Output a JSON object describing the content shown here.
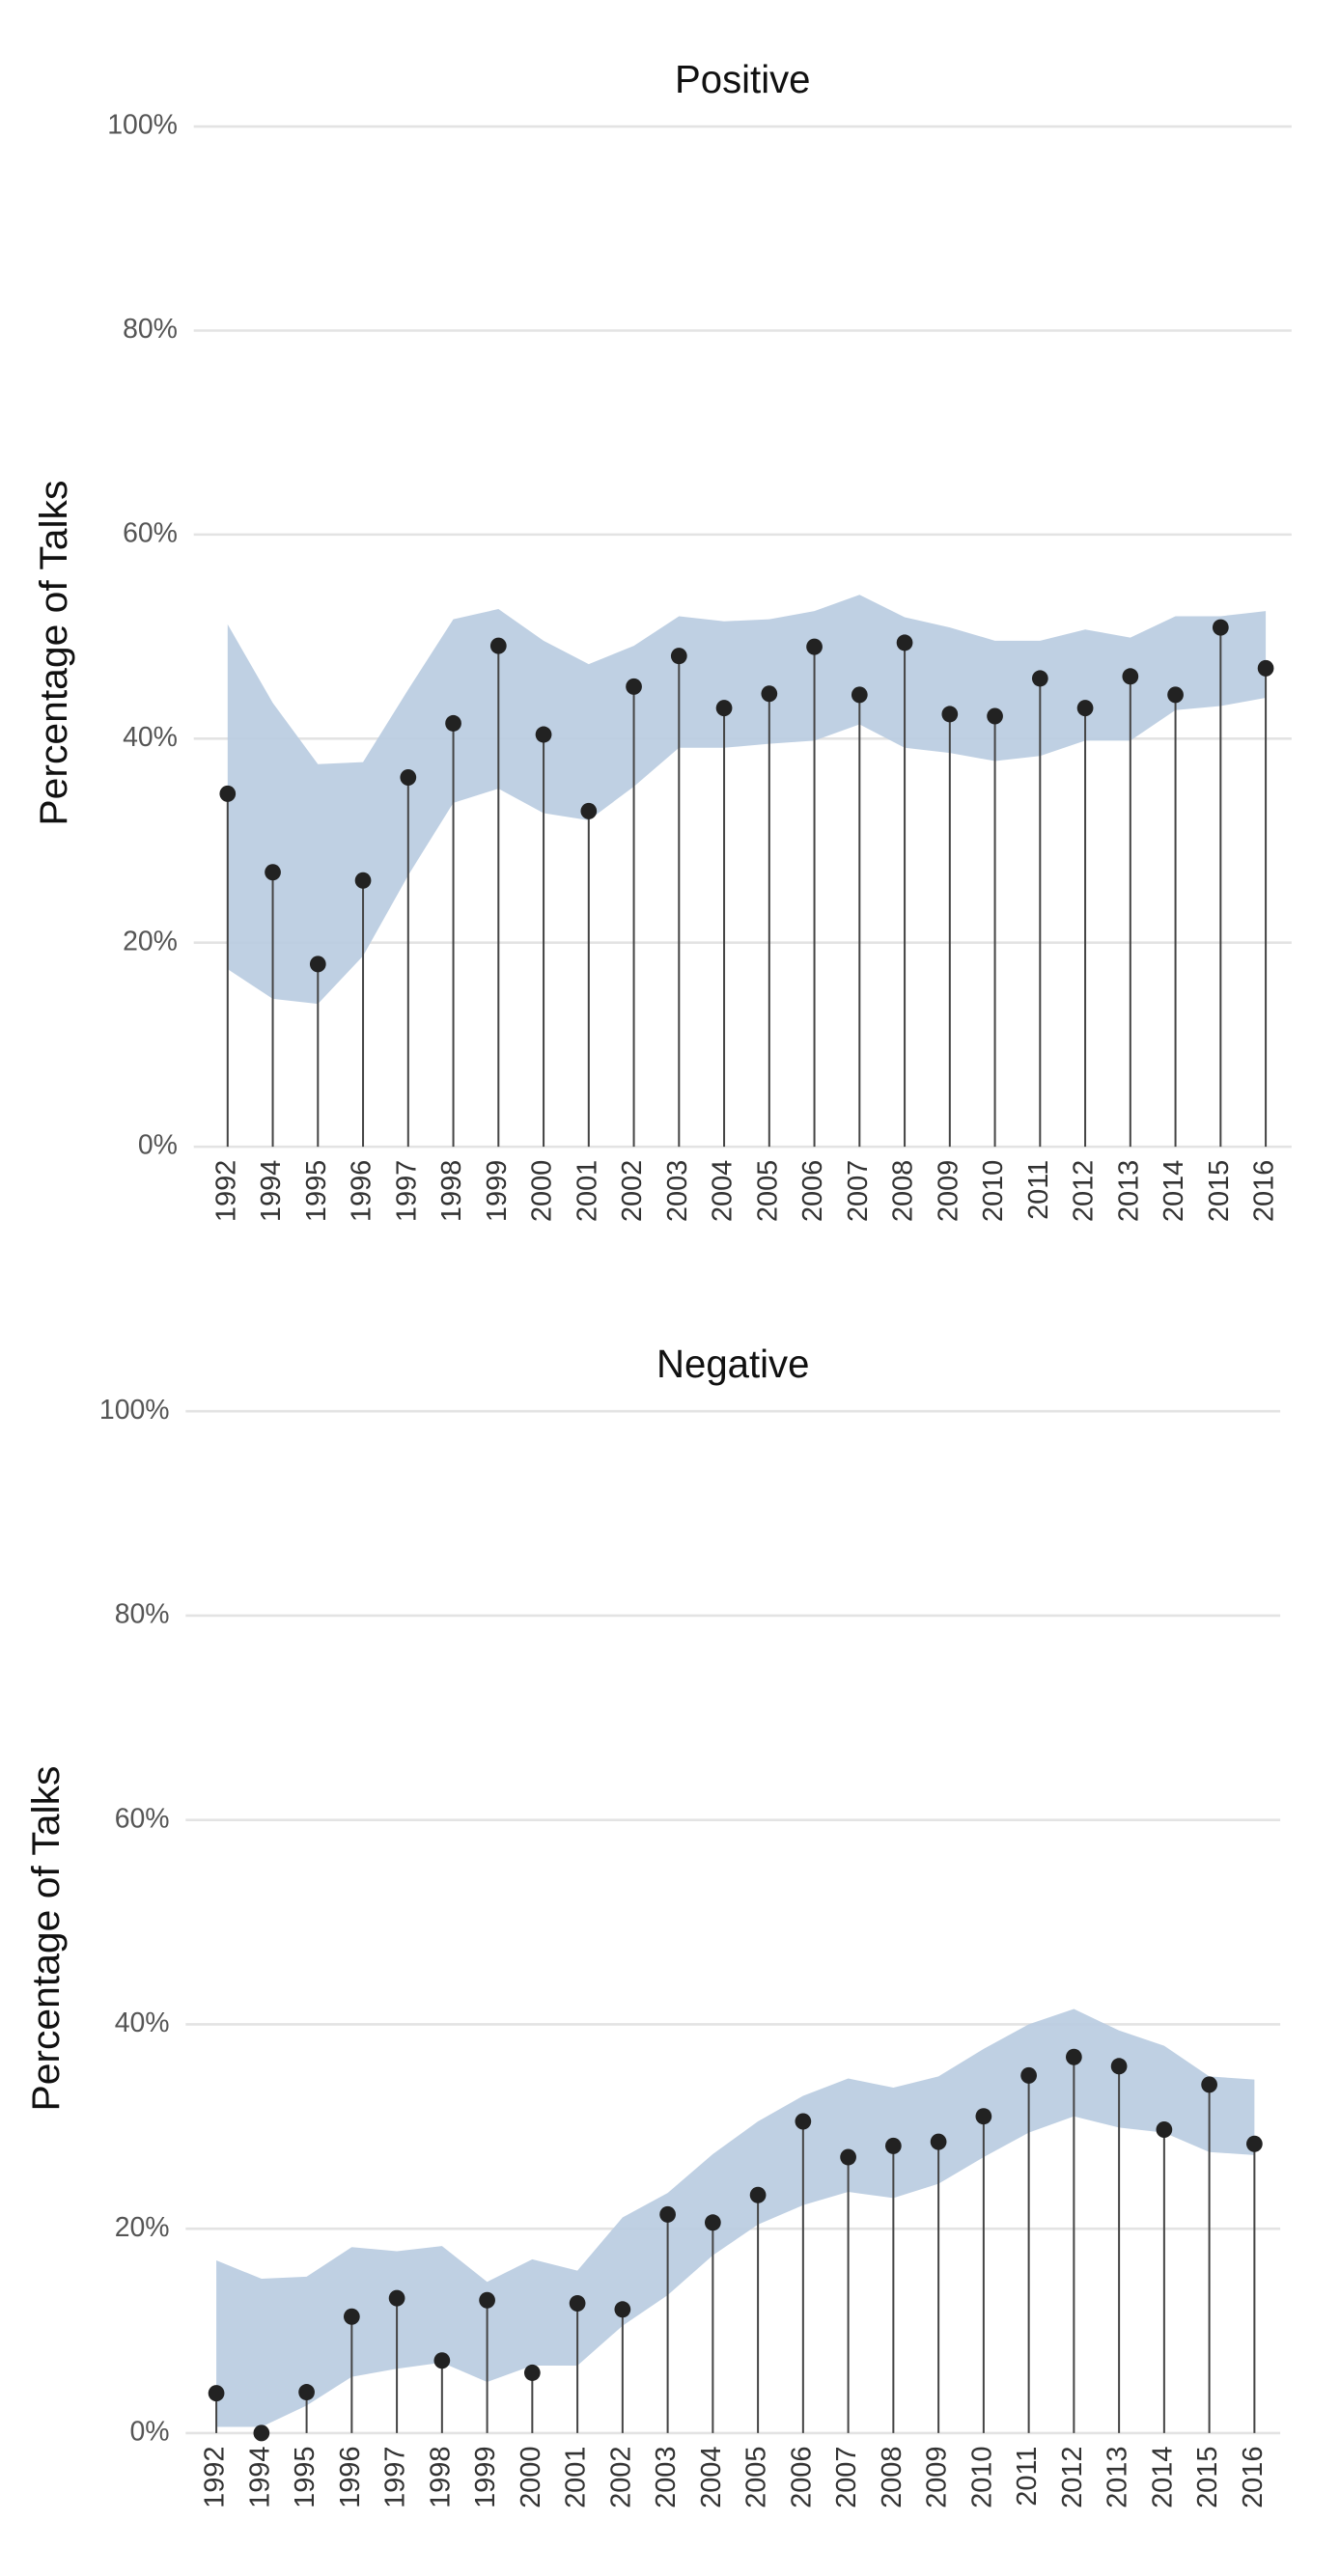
{
  "chart_data": [
    {
      "type": "lollipop",
      "title": "Positive",
      "y_label": "Percentage of Talks",
      "categories": [
        "1992",
        "1994",
        "1995",
        "1996",
        "1997",
        "1998",
        "1999",
        "2000",
        "2001",
        "2002",
        "2003",
        "2004",
        "2005",
        "2006",
        "2007",
        "2008",
        "2009",
        "2010",
        "2011",
        "2012",
        "2013",
        "2014",
        "2015",
        "2016"
      ],
      "values": [
        34.6,
        26.9,
        17.9,
        26.1,
        36.2,
        41.5,
        49.1,
        40.4,
        32.9,
        45.1,
        48.1,
        43.0,
        44.4,
        49.0,
        44.3,
        49.4,
        42.4,
        42.2,
        45.9,
        43.0,
        46.1,
        44.3,
        50.9,
        46.9
      ],
      "upper": [
        51.2,
        43.5,
        37.5,
        37.7,
        44.8,
        51.7,
        52.7,
        49.6,
        47.3,
        49.1,
        52.0,
        51.5,
        51.7,
        52.5,
        54.1,
        51.9,
        50.9,
        49.6,
        49.6,
        50.7,
        49.9,
        52.0,
        52.0,
        52.5
      ],
      "lower": [
        17.4,
        14.5,
        14.0,
        18.7,
        26.6,
        33.7,
        35.1,
        32.7,
        32.0,
        35.3,
        39.1,
        39.1,
        39.5,
        39.8,
        41.4,
        39.1,
        38.6,
        37.8,
        38.3,
        39.8,
        39.8,
        42.8,
        43.2,
        44.0
      ],
      "ylim": [
        0,
        100
      ],
      "yticks": [
        {
          "value": 0,
          "label": "0%"
        },
        {
          "value": 20,
          "label": "20%"
        },
        {
          "value": 40,
          "label": "40%"
        },
        {
          "value": 60,
          "label": "60%"
        },
        {
          "value": 80,
          "label": "80%"
        },
        {
          "value": 100,
          "label": "100%"
        }
      ],
      "grid": true,
      "color": "#222222",
      "band_color": "#b8cbe0"
    },
    {
      "type": "lollipop",
      "title": "Negative",
      "y_label": "Percentage of Talks",
      "categories": [
        "1992",
        "1994",
        "1995",
        "1996",
        "1997",
        "1998",
        "1999",
        "2000",
        "2001",
        "2002",
        "2003",
        "2004",
        "2005",
        "2006",
        "2007",
        "2008",
        "2009",
        "2010",
        "2011",
        "2012",
        "2013",
        "2014",
        "2015",
        "2016"
      ],
      "values": [
        3.9,
        0,
        4.0,
        11.4,
        13.2,
        7.1,
        13.0,
        5.9,
        12.7,
        12.1,
        21.4,
        20.6,
        23.3,
        30.5,
        27.0,
        28.1,
        28.5,
        31.0,
        35.0,
        36.8,
        35.9,
        29.7,
        34.1,
        28.3
      ],
      "upper": [
        16.9,
        15.1,
        15.3,
        18.2,
        17.8,
        18.3,
        14.8,
        17.0,
        15.9,
        21.1,
        23.5,
        27.3,
        30.5,
        33.0,
        34.7,
        33.8,
        34.9,
        37.6,
        40.0,
        41.5,
        39.4,
        37.9,
        34.9,
        34.6
      ],
      "lower": [
        0.6,
        0.6,
        2.7,
        5.5,
        6.3,
        6.9,
        5.0,
        6.6,
        6.6,
        10.5,
        13.5,
        17.4,
        20.4,
        22.3,
        23.6,
        23.0,
        24.4,
        27.0,
        29.4,
        31.0,
        29.9,
        29.4,
        27.5,
        27.2
      ],
      "ylim": [
        0,
        100
      ],
      "yticks": [
        {
          "value": 0,
          "label": "0%"
        },
        {
          "value": 20,
          "label": "20%"
        },
        {
          "value": 40,
          "label": "40%"
        },
        {
          "value": 60,
          "label": "60%"
        },
        {
          "value": 80,
          "label": "80%"
        },
        {
          "value": 100,
          "label": "100%"
        }
      ],
      "grid": true,
      "color": "#222222",
      "band_color": "#b8cbe0"
    }
  ]
}
